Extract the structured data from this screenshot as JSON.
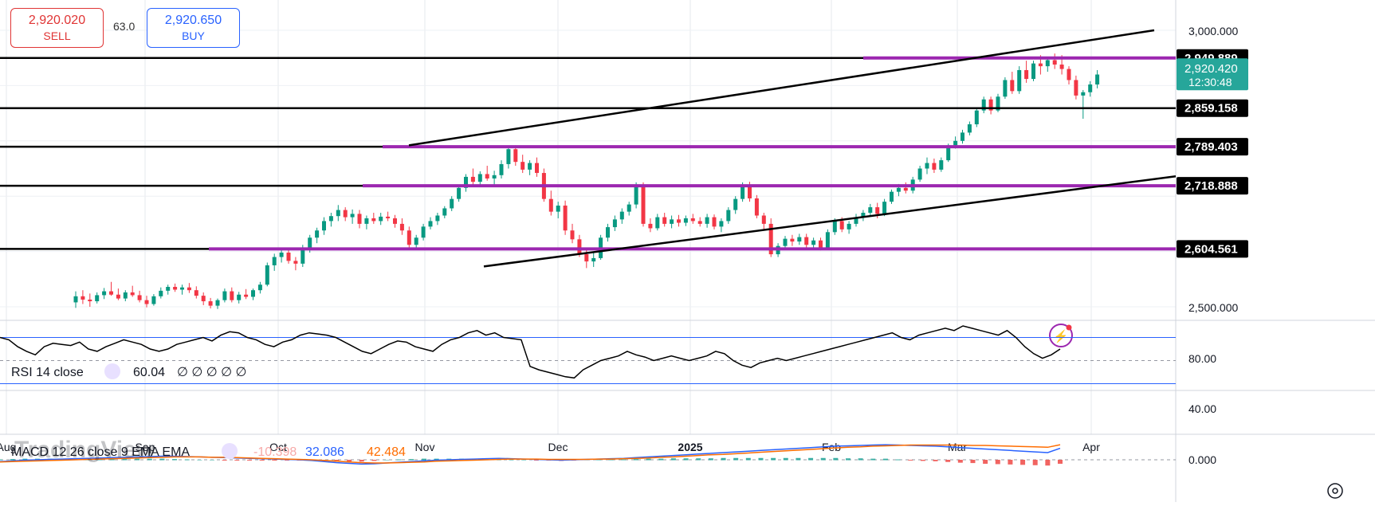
{
  "trade": {
    "sell_price": "2,920.020",
    "sell_label": "SELL",
    "buy_price": "2,920.650",
    "buy_label": "BUY",
    "spread": "63.0"
  },
  "price_axis": {
    "ticks": [
      "3,000.000",
      "2,500.000"
    ]
  },
  "rsi_axis": {
    "ticks": [
      "80.00",
      "40.00"
    ]
  },
  "macd_axis": {
    "ticks": [
      "0.000"
    ]
  },
  "time_axis": [
    "Aug",
    "Sep",
    "Oct",
    "Nov",
    "Dec",
    "2025",
    "Feb",
    "Mar",
    "Apr"
  ],
  "levels": [
    {
      "label": "2,949.889",
      "value": 2949.889
    },
    {
      "label": "2,859.158",
      "value": 2859.158
    },
    {
      "label": "2,789.403",
      "value": 2789.403
    },
    {
      "label": "2,718.888",
      "value": 2718.888
    },
    {
      "label": "2,604.561",
      "value": 2604.561
    }
  ],
  "current": {
    "price": "2,920.420",
    "countdown": "12:30:48",
    "value": 2920.42
  },
  "rsi": {
    "label": "RSI 14 close",
    "value": "60.04",
    "extra": "∅ ∅ ∅ ∅ ∅"
  },
  "macd": {
    "label": "MACD 12 26 close 9 EMA EMA",
    "hist": "-10.398",
    "macd": "32.086",
    "signal": "42.484"
  },
  "watermark": "TradingView",
  "colors": {
    "up": "#089981",
    "down": "#f23645",
    "level": "#9c27b0",
    "line": "#000000",
    "price_tag": "#26a69a",
    "macd": "#2962ff",
    "signal": "#ff6d00",
    "rsi": "#000000"
  },
  "chart_data": {
    "type": "candlestick",
    "title": "",
    "price_ylim": [
      2480,
      3030
    ],
    "candles_ohlc": [
      [
        2508,
        2528,
        2498,
        2519
      ],
      [
        2519,
        2530,
        2505,
        2513
      ],
      [
        2513,
        2524,
        2500,
        2510
      ],
      [
        2510,
        2526,
        2506,
        2521
      ],
      [
        2521,
        2534,
        2514,
        2528
      ],
      [
        2528,
        2545,
        2520,
        2522
      ],
      [
        2522,
        2533,
        2512,
        2515
      ],
      [
        2515,
        2530,
        2510,
        2526
      ],
      [
        2526,
        2538,
        2518,
        2521
      ],
      [
        2521,
        2529,
        2508,
        2512
      ],
      [
        2512,
        2520,
        2499,
        2505
      ],
      [
        2505,
        2523,
        2502,
        2519
      ],
      [
        2519,
        2535,
        2515,
        2529
      ],
      [
        2529,
        2540,
        2522,
        2536
      ],
      [
        2536,
        2542,
        2527,
        2531
      ],
      [
        2531,
        2540,
        2522,
        2535
      ],
      [
        2535,
        2543,
        2525,
        2530
      ],
      [
        2530,
        2537,
        2515,
        2520
      ],
      [
        2520,
        2526,
        2503,
        2510
      ],
      [
        2510,
        2516,
        2497,
        2502
      ],
      [
        2502,
        2515,
        2496,
        2512
      ],
      [
        2512,
        2533,
        2508,
        2528
      ],
      [
        2528,
        2535,
        2508,
        2512
      ],
      [
        2512,
        2527,
        2506,
        2522
      ],
      [
        2522,
        2532,
        2514,
        2518
      ],
      [
        2518,
        2533,
        2512,
        2530
      ],
      [
        2530,
        2545,
        2524,
        2540
      ],
      [
        2540,
        2580,
        2537,
        2575
      ],
      [
        2575,
        2596,
        2565,
        2590
      ],
      [
        2590,
        2605,
        2580,
        2598
      ],
      [
        2598,
        2603,
        2578,
        2583
      ],
      [
        2583,
        2590,
        2566,
        2578
      ],
      [
        2578,
        2612,
        2572,
        2607
      ],
      [
        2607,
        2630,
        2598,
        2625
      ],
      [
        2625,
        2643,
        2615,
        2638
      ],
      [
        2638,
        2662,
        2630,
        2655
      ],
      [
        2655,
        2670,
        2645,
        2664
      ],
      [
        2664,
        2684,
        2655,
        2675
      ],
      [
        2675,
        2680,
        2655,
        2662
      ],
      [
        2662,
        2676,
        2650,
        2668
      ],
      [
        2668,
        2675,
        2642,
        2650
      ],
      [
        2650,
        2665,
        2640,
        2660
      ],
      [
        2660,
        2670,
        2650,
        2655
      ],
      [
        2655,
        2670,
        2648,
        2663
      ],
      [
        2663,
        2672,
        2655,
        2660
      ],
      [
        2660,
        2666,
        2643,
        2650
      ],
      [
        2650,
        2660,
        2630,
        2638
      ],
      [
        2638,
        2645,
        2605,
        2612
      ],
      [
        2612,
        2630,
        2603,
        2625
      ],
      [
        2625,
        2650,
        2620,
        2645
      ],
      [
        2645,
        2662,
        2640,
        2655
      ],
      [
        2655,
        2670,
        2648,
        2665
      ],
      [
        2665,
        2682,
        2660,
        2678
      ],
      [
        2678,
        2700,
        2673,
        2695
      ],
      [
        2695,
        2720,
        2690,
        2715
      ],
      [
        2715,
        2740,
        2708,
        2735
      ],
      [
        2735,
        2750,
        2720,
        2726
      ],
      [
        2726,
        2745,
        2718,
        2740
      ],
      [
        2740,
        2755,
        2728,
        2732
      ],
      [
        2732,
        2746,
        2720,
        2738
      ],
      [
        2738,
        2765,
        2732,
        2758
      ],
      [
        2758,
        2790,
        2750,
        2785
      ],
      [
        2785,
        2792,
        2755,
        2762
      ],
      [
        2762,
        2775,
        2742,
        2748
      ],
      [
        2748,
        2765,
        2738,
        2760
      ],
      [
        2760,
        2770,
        2735,
        2742
      ],
      [
        2742,
        2750,
        2690,
        2695
      ],
      [
        2695,
        2710,
        2665,
        2672
      ],
      [
        2672,
        2690,
        2660,
        2683
      ],
      [
        2683,
        2692,
        2630,
        2638
      ],
      [
        2638,
        2650,
        2615,
        2622
      ],
      [
        2622,
        2630,
        2590,
        2595
      ],
      [
        2595,
        2605,
        2570,
        2582
      ],
      [
        2582,
        2598,
        2572,
        2588
      ],
      [
        2588,
        2630,
        2585,
        2625
      ],
      [
        2625,
        2650,
        2618,
        2644
      ],
      [
        2644,
        2665,
        2637,
        2658
      ],
      [
        2658,
        2678,
        2650,
        2672
      ],
      [
        2672,
        2690,
        2665,
        2685
      ],
      [
        2685,
        2725,
        2678,
        2720
      ],
      [
        2720,
        2725,
        2645,
        2650
      ],
      [
        2650,
        2660,
        2635,
        2642
      ],
      [
        2642,
        2668,
        2638,
        2662
      ],
      [
        2662,
        2670,
        2645,
        2650
      ],
      [
        2650,
        2665,
        2642,
        2658
      ],
      [
        2658,
        2666,
        2645,
        2652
      ],
      [
        2652,
        2665,
        2646,
        2660
      ],
      [
        2660,
        2668,
        2650,
        2655
      ],
      [
        2655,
        2662,
        2645,
        2650
      ],
      [
        2650,
        2668,
        2643,
        2662
      ],
      [
        2662,
        2667,
        2640,
        2645
      ],
      [
        2645,
        2660,
        2635,
        2655
      ],
      [
        2655,
        2680,
        2650,
        2675
      ],
      [
        2675,
        2700,
        2668,
        2695
      ],
      [
        2695,
        2725,
        2690,
        2718
      ],
      [
        2718,
        2726,
        2690,
        2696
      ],
      [
        2696,
        2702,
        2660,
        2665
      ],
      [
        2665,
        2670,
        2640,
        2650
      ],
      [
        2650,
        2660,
        2590,
        2595
      ],
      [
        2595,
        2615,
        2590,
        2610
      ],
      [
        2610,
        2628,
        2604,
        2623
      ],
      [
        2623,
        2630,
        2610,
        2618
      ],
      [
        2618,
        2632,
        2612,
        2626
      ],
      [
        2626,
        2632,
        2605,
        2612
      ],
      [
        2612,
        2625,
        2606,
        2620
      ],
      [
        2620,
        2625,
        2602,
        2607
      ],
      [
        2607,
        2640,
        2603,
        2635
      ],
      [
        2635,
        2660,
        2630,
        2655
      ],
      [
        2655,
        2662,
        2635,
        2640
      ],
      [
        2640,
        2655,
        2632,
        2650
      ],
      [
        2650,
        2668,
        2645,
        2662
      ],
      [
        2662,
        2675,
        2655,
        2670
      ],
      [
        2670,
        2686,
        2664,
        2680
      ],
      [
        2680,
        2688,
        2660,
        2668
      ],
      [
        2668,
        2695,
        2664,
        2690
      ],
      [
        2690,
        2712,
        2686,
        2708
      ],
      [
        2708,
        2722,
        2700,
        2715
      ],
      [
        2715,
        2725,
        2705,
        2710
      ],
      [
        2710,
        2735,
        2705,
        2730
      ],
      [
        2730,
        2755,
        2726,
        2750
      ],
      [
        2750,
        2770,
        2740,
        2760
      ],
      [
        2760,
        2768,
        2742,
        2748
      ],
      [
        2748,
        2770,
        2744,
        2765
      ],
      [
        2765,
        2795,
        2762,
        2792
      ],
      [
        2792,
        2808,
        2786,
        2800
      ],
      [
        2800,
        2820,
        2795,
        2815
      ],
      [
        2815,
        2835,
        2810,
        2830
      ],
      [
        2830,
        2860,
        2825,
        2855
      ],
      [
        2855,
        2880,
        2850,
        2875
      ],
      [
        2875,
        2880,
        2848,
        2855
      ],
      [
        2855,
        2885,
        2852,
        2880
      ],
      [
        2880,
        2915,
        2876,
        2910
      ],
      [
        2910,
        2925,
        2885,
        2890
      ],
      [
        2890,
        2935,
        2885,
        2928
      ],
      [
        2928,
        2945,
        2905,
        2912
      ],
      [
        2912,
        2945,
        2908,
        2940
      ],
      [
        2940,
        2955,
        2920,
        2935
      ],
      [
        2935,
        2952,
        2925,
        2946
      ],
      [
        2946,
        2958,
        2930,
        2938
      ],
      [
        2938,
        2955,
        2920,
        2930
      ],
      [
        2930,
        2935,
        2902,
        2910
      ],
      [
        2910,
        2918,
        2875,
        2882
      ],
      [
        2882,
        2892,
        2840,
        2888
      ],
      [
        2888,
        2908,
        2880,
        2902
      ],
      [
        2902,
        2928,
        2895,
        2920
      ]
    ],
    "rsi_values": [
      70,
      68,
      62,
      58,
      55,
      62,
      65,
      64,
      63,
      66,
      60,
      58,
      62,
      65,
      68,
      66,
      64,
      60,
      58,
      60,
      64,
      66,
      68,
      70,
      67,
      72,
      75,
      74,
      70,
      68,
      64,
      62,
      66,
      68,
      72,
      74,
      73,
      72,
      70,
      66,
      62,
      58,
      56,
      60,
      64,
      67,
      66,
      62,
      60,
      58,
      64,
      68,
      70,
      74,
      76,
      72,
      74,
      70,
      69,
      68,
      45,
      42,
      40,
      38,
      36,
      35,
      42,
      46,
      50,
      52,
      54,
      58,
      55,
      53,
      50,
      52,
      54,
      52,
      50,
      52,
      54,
      58,
      56,
      50,
      46,
      44,
      48,
      50,
      52,
      50,
      52,
      54,
      56,
      58,
      60,
      62,
      64,
      66,
      68,
      70,
      72,
      74,
      70,
      68,
      72,
      74,
      76,
      78,
      76,
      80,
      78,
      76,
      74,
      72,
      76,
      70,
      62,
      56,
      52,
      55,
      60
    ],
    "macd_values": [
      -5,
      -3,
      -1,
      0,
      1,
      2,
      3,
      4,
      5,
      6,
      7,
      8,
      9,
      10,
      10,
      9,
      8,
      7,
      6,
      5,
      4,
      3,
      2,
      1,
      0,
      -2,
      -5,
      -8,
      -10,
      -12,
      -11,
      -9,
      -7,
      -5,
      -3,
      -1,
      0,
      1,
      2,
      3,
      4,
      3,
      2,
      1,
      0,
      -1,
      0,
      1,
      2,
      3,
      4,
      6,
      8,
      10,
      12,
      14,
      16,
      18,
      20,
      22,
      24,
      26,
      28,
      30,
      32,
      34,
      36,
      38,
      39,
      40,
      41,
      42,
      41,
      40,
      39,
      38,
      36,
      34,
      32,
      30,
      28,
      26,
      24,
      22,
      20,
      32
    ],
    "signal_values": [
      -6,
      -5,
      -4,
      -3,
      -2,
      -1,
      0,
      1,
      2,
      3,
      4,
      5,
      6,
      7,
      8,
      8,
      8,
      7,
      7,
      6,
      5,
      4,
      3,
      2,
      1,
      0,
      -2,
      -4,
      -6,
      -8,
      -9,
      -9,
      -8,
      -7,
      -6,
      -4,
      -3,
      -2,
      -1,
      0,
      1,
      2,
      2,
      2,
      1,
      1,
      1,
      1,
      2,
      2,
      3,
      4,
      5,
      7,
      8,
      10,
      12,
      14,
      15,
      17,
      19,
      21,
      23,
      25,
      27,
      29,
      31,
      33,
      35,
      36,
      38,
      39,
      40,
      41,
      41,
      41,
      41,
      41,
      40,
      40,
      39,
      38,
      37,
      36,
      35,
      42
    ],
    "trendlines": [
      {
        "from": [
          2792,
          0.366
        ],
        "to": [
          3000,
          0.925
        ],
        "name": "upper-channel"
      },
      {
        "from": [
          2573,
          0.385
        ],
        "to": [
          2736,
          1.0
        ],
        "name": "lower-channel"
      }
    ]
  }
}
